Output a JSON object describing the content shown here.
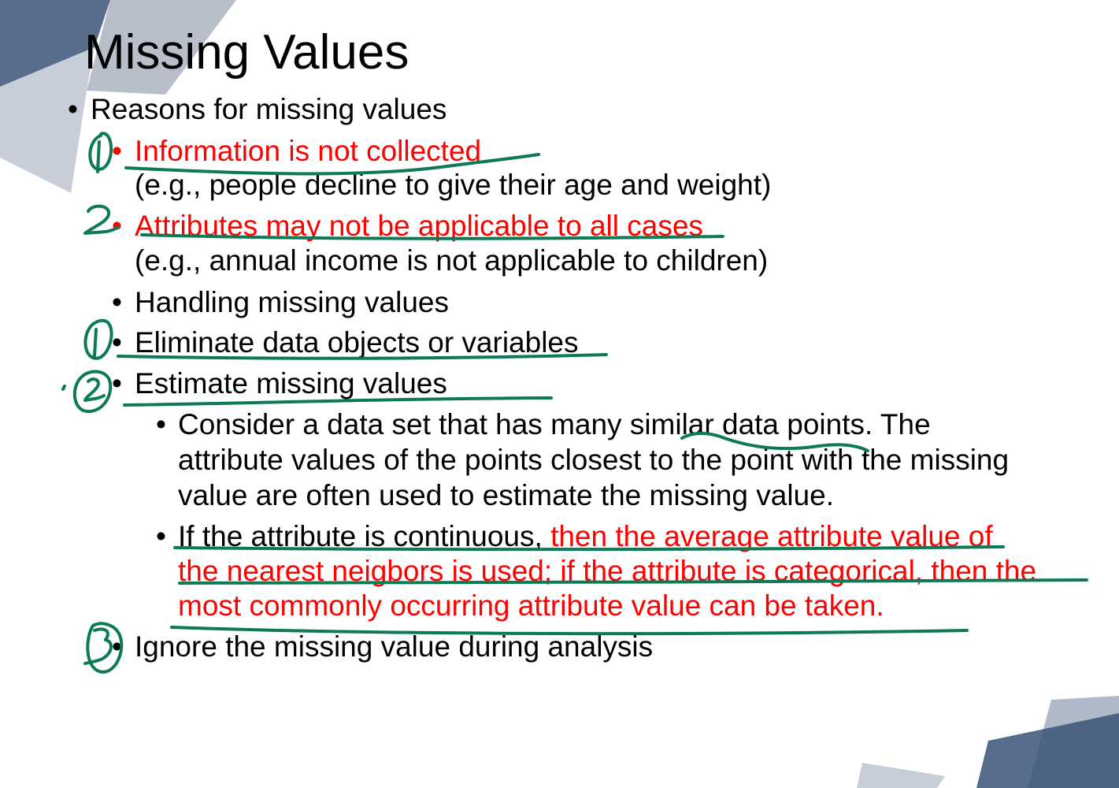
{
  "title": "Missing Values",
  "reasons_heading": "Reasons for missing values",
  "reason_1_title": "Information is not collected",
  "reason_1_example": "(e.g., people decline to give their age and weight)",
  "reason_2_title": "Attributes may not be applicable to all cases",
  "reason_2_example": "(e.g., annual income is not applicable to children)",
  "handling_heading": "Handling missing values",
  "handling_1": "Eliminate data objects or variables",
  "handling_2": "Estimate missing values",
  "estimate_1_line_1": "Consider a data set that has many similar data points. The",
  "estimate_1_line_2": "attribute values of the points closest to the point with the missing",
  "estimate_1_line_3": "value are often used to estimate the missing value.",
  "estimate_2_line_1_black": "If the attribute is continuous, ",
  "estimate_2_line_1_red": "then the average attribute value of",
  "estimate_2_line_2": "the nearest neigbors is used; if the attribute is categorical, then the",
  "estimate_2_line_3": "most commonly occurring attribute value can be taken.",
  "handling_3": "Ignore the missing value during analysis",
  "bullet_char": "•",
  "colors": {
    "text": "#000000",
    "highlight": "#ff0000",
    "ink": "#0b7a55",
    "deco_dark": "#2f4a73",
    "deco_light": "#8e9bb0"
  }
}
